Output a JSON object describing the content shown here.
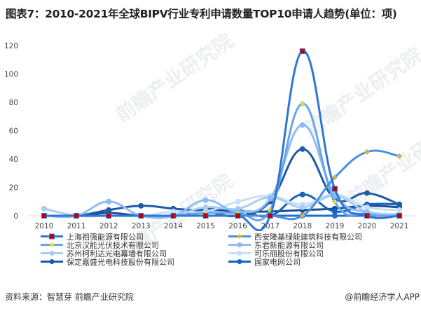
{
  "title": "图表7：2010-2021年全球BIPV行业专利申请数量TOP10申请人趋势(单位：项)",
  "footer": {
    "source": "资料来源：智慧芽 前瞻产业研究院",
    "credit": "@前瞻经济学人APP"
  },
  "watermark": "前瞻产业研究院",
  "chart_data": {
    "type": "line",
    "title": "图表7：2010-2021年全球BIPV行业专利申请数量TOP10申请人趋势(单位：项)",
    "xlabel": "",
    "ylabel": "",
    "unit": "项",
    "ylim": [
      0,
      120
    ],
    "yticks": [
      0,
      20,
      40,
      60,
      80,
      100,
      120
    ],
    "grid": false,
    "legend_position": "bottom",
    "smooth": true,
    "categories": [
      "2010",
      "2011",
      "2012",
      "2013",
      "2014",
      "2015",
      "2016",
      "2017",
      "2018",
      "2019",
      "2020",
      "2021"
    ],
    "series": [
      {
        "name": "上海祖强能源有限公司",
        "color": "#2e75d6",
        "marker": "square",
        "marker_color": "#c00000",
        "values": [
          0,
          0,
          0,
          0,
          0,
          0,
          0,
          0,
          116,
          19,
          0,
          0
        ]
      },
      {
        "name": "西安隆基绿能建筑科技有限公司",
        "color": "#4a8ee0",
        "marker": "diamond",
        "marker_color": "#f0b400",
        "values": [
          0,
          0,
          0,
          0,
          0,
          0,
          0,
          0,
          0,
          27,
          45,
          42
        ]
      },
      {
        "name": "北京汉能光伏技术有限公司",
        "color": "#6aa5ea",
        "marker": "diamond",
        "marker_color": "#f5e400",
        "values": [
          0,
          0,
          0,
          0,
          0,
          2,
          2,
          4,
          79,
          10,
          1,
          0
        ]
      },
      {
        "name": "东君新能源有限公司",
        "color": "#8dbdf2",
        "marker": "circle",
        "marker_color": "#8dbdf2",
        "values": [
          0,
          0,
          10,
          0,
          0,
          11,
          3,
          12,
          64,
          15,
          2,
          0
        ]
      },
      {
        "name": "苏州柯利达光电幕墙有限公司",
        "color": "#a9cdf5",
        "marker": "circle",
        "marker_color": "#a9cdf5",
        "values": [
          5,
          0,
          0,
          0,
          0,
          6,
          5,
          13,
          6,
          14,
          3,
          1
        ]
      },
      {
        "name": "可乐丽股份有限公司",
        "color": "#c7e0fa",
        "marker": "circle",
        "marker_color": "#c7e0fa",
        "values": [
          5,
          0,
          0,
          0,
          3,
          3,
          10,
          14,
          8,
          15,
          6,
          4
        ]
      },
      {
        "name": "保定嘉盛光电科技股份有限公司",
        "color": "#1f5aa8",
        "marker": "circle",
        "marker_color": "#1f5aa8",
        "values": [
          0,
          0,
          4,
          7,
          5,
          3,
          0,
          10,
          47,
          12,
          16,
          8
        ]
      },
      {
        "name": "国家电网公司",
        "color": "#1565c0",
        "marker": "circle",
        "marker_color": "#1565c0",
        "values": [
          0,
          0,
          0,
          0,
          0,
          5,
          4,
          0,
          15,
          3,
          8,
          8
        ]
      }
    ],
    "extra_series_note": "Two additional unlabeled dark blue lines appear near baseline in the plot",
    "extra_series": [
      {
        "name": "",
        "color": "#1a4f96",
        "values": [
          0,
          0,
          2,
          0,
          0,
          4,
          3,
          3,
          4,
          5,
          7,
          6
        ]
      },
      {
        "name": "",
        "color": "#1e6fd0",
        "values": [
          0,
          0,
          0,
          0,
          0,
          0,
          0,
          0,
          0,
          0,
          0,
          0
        ]
      }
    ]
  },
  "legend": {
    "left": [
      "上海祖强能源有限公司",
      "北京汉能光伏技术有限公司",
      "苏州柯利达光电幕墙有限公司",
      "保定嘉盛光电科技股份有限公司"
    ],
    "right": [
      "西安隆基绿能建筑科技有限公司",
      "东君新能源有限公司",
      "可乐丽股份有限公司",
      "国家电网公司"
    ]
  }
}
